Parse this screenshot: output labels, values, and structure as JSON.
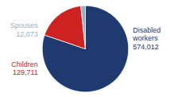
{
  "chart_data": {
    "type": "pie",
    "categories": [
      "Disabled\nworkers",
      "Children",
      "Spouses"
    ],
    "values": [
      574012,
      129711,
      12073
    ],
    "value_labels": [
      "574,012",
      "129,711",
      "12,073"
    ],
    "colors": [
      "#1e3a6e",
      "#cc2222",
      "#9bafc4"
    ],
    "data_labels": true
  }
}
